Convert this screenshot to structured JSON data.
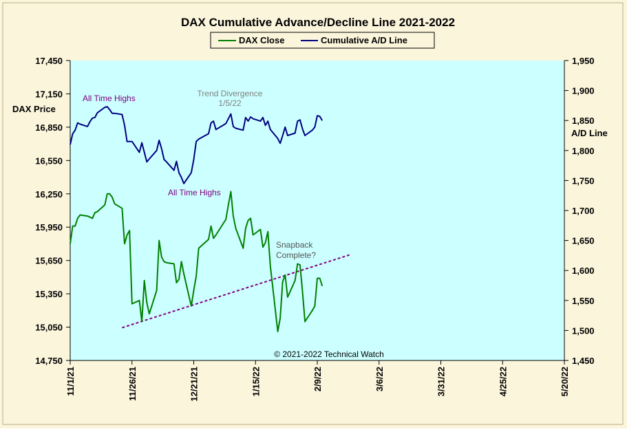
{
  "chart_data": {
    "type": "line",
    "title": "DAX Cumulative Advance/Decline Line 2021-2022",
    "ylabel_left": "DAX Price",
    "ylabel_right": "A/D Line",
    "x_tick_labels": [
      "11/1/21",
      "11/26/21",
      "12/21/21",
      "1/15/22",
      "2/9/22",
      "3/6/22",
      "3/31/22",
      "4/25/22",
      "5/20/22"
    ],
    "x_range": [
      "2021-11-01",
      "2022-05-20"
    ],
    "y_left_range": [
      14750,
      17450
    ],
    "y_left_ticks": [
      "14,750",
      "15,050",
      "15,350",
      "15,650",
      "15,950",
      "16,250",
      "16,550",
      "16,850",
      "17,150",
      "17,450"
    ],
    "y_right_range": [
      1450,
      1950
    ],
    "y_right_ticks": [
      "1,450",
      "1,500",
      "1,550",
      "1,600",
      "1,650",
      "1,700",
      "1,750",
      "1,800",
      "1,850",
      "1,900",
      "1,950"
    ],
    "legend_position": "top-center",
    "grid": false,
    "series": [
      {
        "name": "DAX Close",
        "axis": "left",
        "color": "#008000",
        "points": [
          [
            "2021-11-01",
            15800
          ],
          [
            "2021-11-02",
            15960
          ],
          [
            "2021-11-03",
            15960
          ],
          [
            "2021-11-04",
            16030
          ],
          [
            "2021-11-05",
            16060
          ],
          [
            "2021-11-08",
            16050
          ],
          [
            "2021-11-09",
            16040
          ],
          [
            "2021-11-10",
            16030
          ],
          [
            "2021-11-11",
            16080
          ],
          [
            "2021-11-12",
            16090
          ],
          [
            "2021-11-15",
            16150
          ],
          [
            "2021-11-16",
            16250
          ],
          [
            "2021-11-17",
            16250
          ],
          [
            "2021-11-18",
            16220
          ],
          [
            "2021-11-19",
            16160
          ],
          [
            "2021-11-22",
            16120
          ],
          [
            "2021-11-23",
            15800
          ],
          [
            "2021-11-24",
            15880
          ],
          [
            "2021-11-25",
            15920
          ],
          [
            "2021-11-26",
            15260
          ],
          [
            "2021-11-29",
            15290
          ],
          [
            "2021-11-30",
            15100
          ],
          [
            "2021-12-01",
            15470
          ],
          [
            "2021-12-02",
            15270
          ],
          [
            "2021-12-03",
            15170
          ],
          [
            "2021-12-06",
            15380
          ],
          [
            "2021-12-07",
            15830
          ],
          [
            "2021-12-08",
            15680
          ],
          [
            "2021-12-09",
            15640
          ],
          [
            "2021-12-10",
            15630
          ],
          [
            "2021-12-13",
            15620
          ],
          [
            "2021-12-14",
            15450
          ],
          [
            "2021-12-15",
            15480
          ],
          [
            "2021-12-16",
            15640
          ],
          [
            "2021-12-17",
            15530
          ],
          [
            "2021-12-20",
            15240
          ],
          [
            "2021-12-21",
            15380
          ],
          [
            "2021-12-22",
            15510
          ],
          [
            "2021-12-23",
            15760
          ],
          [
            "2021-12-27",
            15840
          ],
          [
            "2021-12-28",
            15960
          ],
          [
            "2021-12-29",
            15850
          ],
          [
            "2021-12-30",
            15880
          ],
          [
            "2022-01-03",
            16020
          ],
          [
            "2022-01-04",
            16150
          ],
          [
            "2022-01-05",
            16270
          ],
          [
            "2022-01-06",
            16050
          ],
          [
            "2022-01-07",
            15940
          ],
          [
            "2022-01-10",
            15760
          ],
          [
            "2022-01-11",
            15940
          ],
          [
            "2022-01-12",
            16010
          ],
          [
            "2022-01-13",
            16030
          ],
          [
            "2022-01-14",
            15880
          ],
          [
            "2022-01-17",
            15930
          ],
          [
            "2022-01-18",
            15770
          ],
          [
            "2022-01-19",
            15810
          ],
          [
            "2022-01-20",
            15910
          ],
          [
            "2022-01-21",
            15600
          ],
          [
            "2022-01-24",
            15010
          ],
          [
            "2022-01-25",
            15130
          ],
          [
            "2022-01-26",
            15460
          ],
          [
            "2022-01-27",
            15520
          ],
          [
            "2022-01-28",
            15320
          ],
          [
            "2022-01-31",
            15470
          ],
          [
            "2022-02-01",
            15620
          ],
          [
            "2022-02-02",
            15610
          ],
          [
            "2022-02-03",
            15370
          ],
          [
            "2022-02-04",
            15100
          ],
          [
            "2022-02-07",
            15200
          ],
          [
            "2022-02-08",
            15240
          ],
          [
            "2022-02-09",
            15490
          ],
          [
            "2022-02-10",
            15490
          ],
          [
            "2022-02-11",
            15420
          ]
        ]
      },
      {
        "name": "Cumulative A/D Line",
        "axis": "right",
        "color": "#000080",
        "points": [
          [
            "2021-11-01",
            1810
          ],
          [
            "2021-11-02",
            1828
          ],
          [
            "2021-11-03",
            1834
          ],
          [
            "2021-11-04",
            1846
          ],
          [
            "2021-11-05",
            1844
          ],
          [
            "2021-11-08",
            1840
          ],
          [
            "2021-11-09",
            1848
          ],
          [
            "2021-11-10",
            1854
          ],
          [
            "2021-11-11",
            1855
          ],
          [
            "2021-11-12",
            1863
          ],
          [
            "2021-11-15",
            1872
          ],
          [
            "2021-11-16",
            1873
          ],
          [
            "2021-11-17",
            1868
          ],
          [
            "2021-11-18",
            1862
          ],
          [
            "2021-11-19",
            1862
          ],
          [
            "2021-11-22",
            1860
          ],
          [
            "2021-11-23",
            1842
          ],
          [
            "2021-11-24",
            1815
          ],
          [
            "2021-11-25",
            1815
          ],
          [
            "2021-11-26",
            1815
          ],
          [
            "2021-11-29",
            1797
          ],
          [
            "2021-11-30",
            1813
          ],
          [
            "2021-12-01",
            1797
          ],
          [
            "2021-12-02",
            1781
          ],
          [
            "2021-12-03",
            1786
          ],
          [
            "2021-12-06",
            1800
          ],
          [
            "2021-12-07",
            1817
          ],
          [
            "2021-12-08",
            1803
          ],
          [
            "2021-12-09",
            1785
          ],
          [
            "2021-12-10",
            1781
          ],
          [
            "2021-12-13",
            1767
          ],
          [
            "2021-12-14",
            1782
          ],
          [
            "2021-12-15",
            1763
          ],
          [
            "2021-12-16",
            1755
          ],
          [
            "2021-12-17",
            1745
          ],
          [
            "2021-12-20",
            1763
          ],
          [
            "2021-12-21",
            1785
          ],
          [
            "2021-12-22",
            1815
          ],
          [
            "2021-12-23",
            1819
          ],
          [
            "2021-12-27",
            1828
          ],
          [
            "2021-12-28",
            1846
          ],
          [
            "2021-12-29",
            1849
          ],
          [
            "2021-12-30",
            1835
          ],
          [
            "2022-01-03",
            1845
          ],
          [
            "2022-01-04",
            1853
          ],
          [
            "2022-01-05",
            1861
          ],
          [
            "2022-01-06",
            1840
          ],
          [
            "2022-01-07",
            1837
          ],
          [
            "2022-01-10",
            1834
          ],
          [
            "2022-01-11",
            1855
          ],
          [
            "2022-01-12",
            1849
          ],
          [
            "2022-01-13",
            1856
          ],
          [
            "2022-01-14",
            1853
          ],
          [
            "2022-01-17",
            1849
          ],
          [
            "2022-01-18",
            1855
          ],
          [
            "2022-01-19",
            1842
          ],
          [
            "2022-01-20",
            1849
          ],
          [
            "2022-01-21",
            1835
          ],
          [
            "2022-01-24",
            1820
          ],
          [
            "2022-01-25",
            1812
          ],
          [
            "2022-01-26",
            1825
          ],
          [
            "2022-01-27",
            1839
          ],
          [
            "2022-01-28",
            1825
          ],
          [
            "2022-01-31",
            1829
          ],
          [
            "2022-02-01",
            1849
          ],
          [
            "2022-02-02",
            1851
          ],
          [
            "2022-02-03",
            1836
          ],
          [
            "2022-02-04",
            1825
          ],
          [
            "2022-02-07",
            1834
          ],
          [
            "2022-02-08",
            1839
          ],
          [
            "2022-02-09",
            1858
          ],
          [
            "2022-02-10",
            1857
          ],
          [
            "2022-02-11",
            1850
          ]
        ]
      }
    ],
    "trendline": {
      "color": "#800080",
      "style": "dashed",
      "axis": "left",
      "points": [
        [
          "2021-11-22",
          15045
        ],
        [
          "2022-02-22",
          15700
        ]
      ]
    },
    "annotations": {
      "ath_1": "All Time Highs",
      "ath_2": "All Time Highs",
      "divergence": [
        "Trend  Divergence",
        "1/5/22"
      ],
      "snapback": [
        "Snapback",
        "Complete?"
      ],
      "copyright": "© 2021-2022  Technical Watch"
    }
  }
}
